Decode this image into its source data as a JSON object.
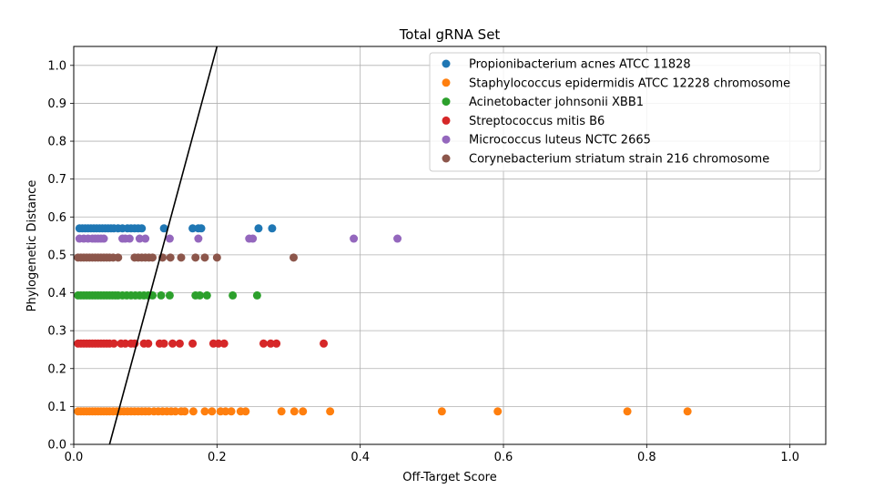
{
  "chart_data": {
    "type": "scatter",
    "title": "Total gRNA Set",
    "xlabel": "Off-Target Score",
    "ylabel": "Phylogenetic Distance",
    "xlim": [
      0.0,
      1.05
    ],
    "ylim": [
      0.0,
      1.05
    ],
    "x_ticks": [
      "0.0",
      "0.2",
      "0.4",
      "0.6",
      "0.8",
      "1.0"
    ],
    "y_ticks": [
      "0.0",
      "0.1",
      "0.2",
      "0.3",
      "0.4",
      "0.5",
      "0.6",
      "0.7",
      "0.8",
      "0.9",
      "1.0"
    ],
    "grid": true,
    "legend_position": "top-right",
    "reference_line": {
      "x": [
        0.05,
        0.2
      ],
      "y": [
        0.0,
        1.05
      ],
      "color": "#000000"
    },
    "series": [
      {
        "name": "Propionibacterium acnes ATCC 11828",
        "color": "#1f77b4",
        "y": 0.57,
        "x": [
          0.008,
          0.012,
          0.016,
          0.02,
          0.024,
          0.028,
          0.032,
          0.036,
          0.04,
          0.044,
          0.048,
          0.052,
          0.056,
          0.062,
          0.068,
          0.075,
          0.08,
          0.085,
          0.09,
          0.095,
          0.126,
          0.166,
          0.174,
          0.178,
          0.258,
          0.277
        ]
      },
      {
        "name": "Staphylococcus epidermidis ATCC 12228 chromosome",
        "color": "#ff7f0e",
        "y": 0.087,
        "x": [
          0.006,
          0.01,
          0.014,
          0.018,
          0.022,
          0.026,
          0.03,
          0.034,
          0.038,
          0.042,
          0.046,
          0.05,
          0.055,
          0.06,
          0.065,
          0.07,
          0.075,
          0.08,
          0.085,
          0.09,
          0.095,
          0.1,
          0.105,
          0.112,
          0.118,
          0.124,
          0.13,
          0.136,
          0.142,
          0.15,
          0.155,
          0.167,
          0.183,
          0.193,
          0.205,
          0.212,
          0.22,
          0.233,
          0.24,
          0.29,
          0.308,
          0.32,
          0.358,
          0.514,
          0.592,
          0.773,
          0.857
        ]
      },
      {
        "name": "Acinetobacter johnsonii XBB1",
        "color": "#2ca02c",
        "y": 0.393,
        "x": [
          0.006,
          0.01,
          0.014,
          0.018,
          0.022,
          0.026,
          0.03,
          0.034,
          0.038,
          0.042,
          0.046,
          0.05,
          0.054,
          0.058,
          0.062,
          0.068,
          0.074,
          0.08,
          0.086,
          0.092,
          0.098,
          0.104,
          0.11,
          0.122,
          0.134,
          0.17,
          0.176,
          0.186,
          0.222,
          0.256
        ]
      },
      {
        "name": "Streptococcus mitis B6",
        "color": "#d62728",
        "y": 0.266,
        "x": [
          0.006,
          0.01,
          0.014,
          0.018,
          0.022,
          0.026,
          0.03,
          0.034,
          0.038,
          0.042,
          0.046,
          0.05,
          0.056,
          0.066,
          0.072,
          0.08,
          0.085,
          0.098,
          0.104,
          0.12,
          0.126,
          0.138,
          0.148,
          0.166,
          0.195,
          0.202,
          0.21,
          0.265,
          0.275,
          0.283,
          0.349
        ]
      },
      {
        "name": "Micrococcus luteus NCTC 2665",
        "color": "#9467bd",
        "y": 0.543,
        "x": [
          0.008,
          0.014,
          0.02,
          0.026,
          0.03,
          0.034,
          0.038,
          0.042,
          0.068,
          0.072,
          0.078,
          0.092,
          0.1,
          0.134,
          0.174,
          0.245,
          0.25,
          0.391,
          0.452
        ]
      },
      {
        "name": "Corynebacterium striatum strain 216 chromosome",
        "color": "#8c564b",
        "y": 0.493,
        "x": [
          0.006,
          0.01,
          0.014,
          0.018,
          0.022,
          0.026,
          0.03,
          0.034,
          0.038,
          0.042,
          0.046,
          0.05,
          0.055,
          0.062,
          0.085,
          0.09,
          0.095,
          0.1,
          0.105,
          0.11,
          0.124,
          0.135,
          0.15,
          0.17,
          0.183,
          0.2,
          0.307
        ]
      }
    ]
  }
}
